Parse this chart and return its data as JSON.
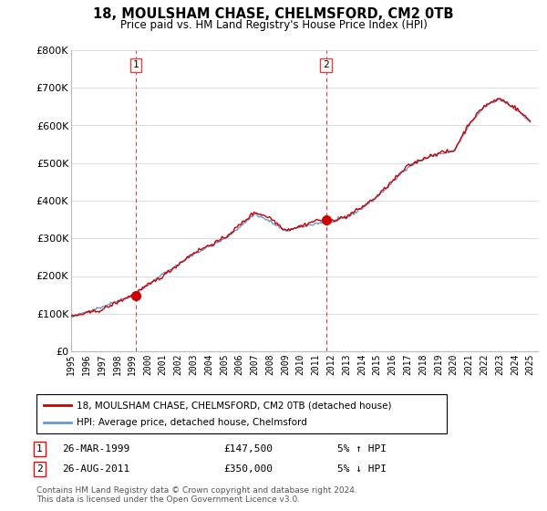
{
  "title": "18, MOULSHAM CHASE, CHELMSFORD, CM2 0TB",
  "subtitle": "Price paid vs. HM Land Registry's House Price Index (HPI)",
  "ylabel_ticks": [
    "£0",
    "£100K",
    "£200K",
    "£300K",
    "£400K",
    "£500K",
    "£600K",
    "£700K",
    "£800K"
  ],
  "ylim": [
    0,
    800000
  ],
  "xlim_start": 1995.0,
  "xlim_end": 2025.5,
  "purchase1_date": 1999.23,
  "purchase1_price": 147500,
  "purchase2_date": 2011.65,
  "purchase2_price": 350000,
  "legend_label_red": "18, MOULSHAM CHASE, CHELMSFORD, CM2 0TB (detached house)",
  "legend_label_blue": "HPI: Average price, detached house, Chelmsford",
  "table_row1": [
    "1",
    "26-MAR-1999",
    "£147,500",
    "5% ↑ HPI"
  ],
  "table_row2": [
    "2",
    "26-AUG-2011",
    "£350,000",
    "5% ↓ HPI"
  ],
  "footer": "Contains HM Land Registry data © Crown copyright and database right 2024.\nThis data is licensed under the Open Government Licence v3.0.",
  "line_color_red": "#cc0000",
  "line_color_blue": "#6699cc",
  "vline_color": "#dd4444",
  "background_color": "#ffffff",
  "grid_color": "#dddddd",
  "hpi_anchors_t": [
    1995,
    1996,
    1997,
    1998,
    1999,
    2000,
    2001,
    2002,
    2003,
    2004,
    2005,
    2006,
    2007,
    2008,
    2009,
    2010,
    2011,
    2012,
    2013,
    2014,
    2015,
    2016,
    2017,
    2018,
    2019,
    2020,
    2021,
    2022,
    2023,
    2024,
    2025
  ],
  "hpi_anchors_v": [
    90000,
    105000,
    118000,
    133000,
    148000,
    175000,
    205000,
    230000,
    258000,
    278000,
    298000,
    330000,
    365000,
    345000,
    320000,
    330000,
    340000,
    345000,
    355000,
    380000,
    410000,
    450000,
    490000,
    510000,
    525000,
    530000,
    600000,
    650000,
    670000,
    645000,
    610000
  ],
  "red_anchors_t": [
    1995,
    1997,
    1999,
    2001,
    2003,
    2005,
    2007,
    2008,
    2009,
    2010,
    2011,
    2012,
    2013,
    2014,
    2015,
    2016,
    2017,
    2018,
    2019,
    2020,
    2021,
    2022,
    2023,
    2024,
    2025
  ],
  "red_anchors_v": [
    92000,
    110000,
    150000,
    200000,
    262000,
    300000,
    370000,
    355000,
    322000,
    332000,
    348000,
    347000,
    358000,
    383000,
    412000,
    452000,
    492000,
    512000,
    527000,
    532000,
    605000,
    652000,
    672000,
    648000,
    612000
  ]
}
